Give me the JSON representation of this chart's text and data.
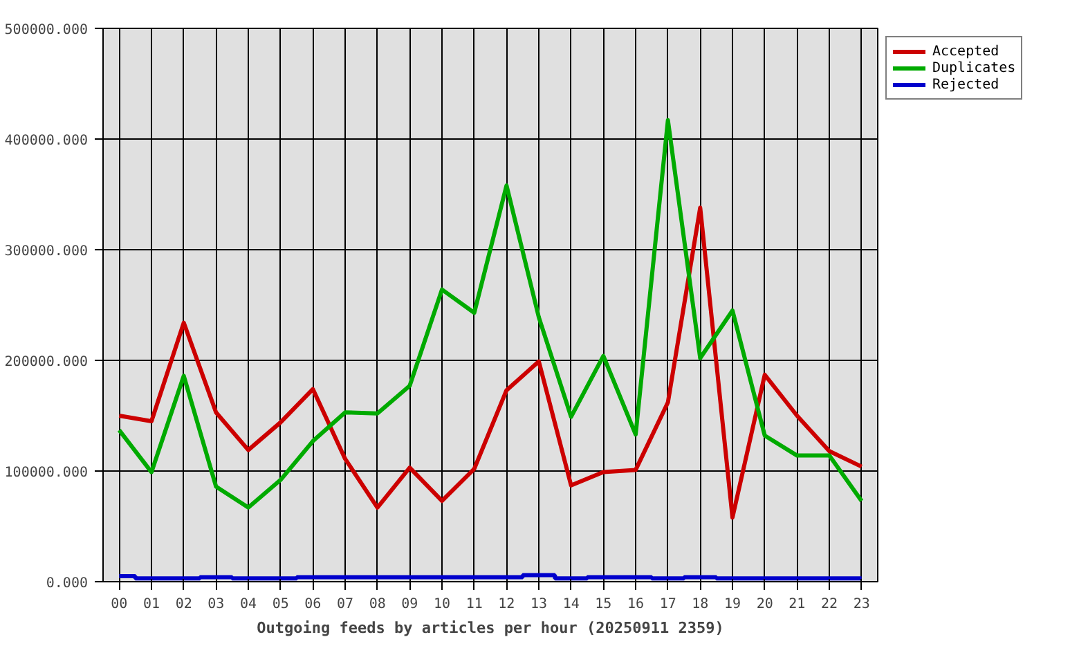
{
  "chart_data": {
    "type": "line",
    "xlabel": "Outgoing feeds by articles per hour (20250911 2359)",
    "categories": [
      "00",
      "01",
      "02",
      "03",
      "04",
      "05",
      "06",
      "07",
      "08",
      "09",
      "10",
      "11",
      "12",
      "13",
      "14",
      "15",
      "16",
      "17",
      "18",
      "19",
      "20",
      "21",
      "22",
      "23"
    ],
    "series": [
      {
        "name": "Accepted",
        "color": "#cc0000",
        "values": [
          150000,
          145000,
          234000,
          153000,
          119000,
          144000,
          174000,
          111000,
          67000,
          103000,
          73000,
          102000,
          173000,
          199000,
          87000,
          99000,
          101000,
          162000,
          338000,
          58000,
          187000,
          150000,
          118000,
          104000
        ]
      },
      {
        "name": "Duplicates",
        "color": "#00aa00",
        "values": [
          137000,
          99000,
          186000,
          86000,
          67000,
          92000,
          127000,
          153000,
          152000,
          177000,
          264000,
          243000,
          358000,
          239000,
          149000,
          204000,
          133000,
          417000,
          202000,
          245000,
          132000,
          114000,
          114000,
          73000
        ]
      },
      {
        "name": "Rejected",
        "color": "#0000cc",
        "type": "step",
        "values": [
          5000,
          3000,
          3000,
          4000,
          3000,
          3000,
          4000,
          4000,
          4000,
          4000,
          4000,
          4000,
          4000,
          6000,
          3000,
          4000,
          4000,
          3000,
          4000,
          3000,
          3000,
          3000,
          3000,
          3000
        ]
      }
    ],
    "ylim": [
      0,
      500000
    ],
    "yticks": [
      {
        "value": 0,
        "label": "0.000"
      },
      {
        "value": 100000,
        "label": "100000.000"
      },
      {
        "value": 200000,
        "label": "200000.000"
      },
      {
        "value": 300000,
        "label": "300000.000"
      },
      {
        "value": 400000,
        "label": "400000.000"
      },
      {
        "value": 500000,
        "label": "500000.000"
      }
    ],
    "grid": true,
    "legend": "top right"
  }
}
